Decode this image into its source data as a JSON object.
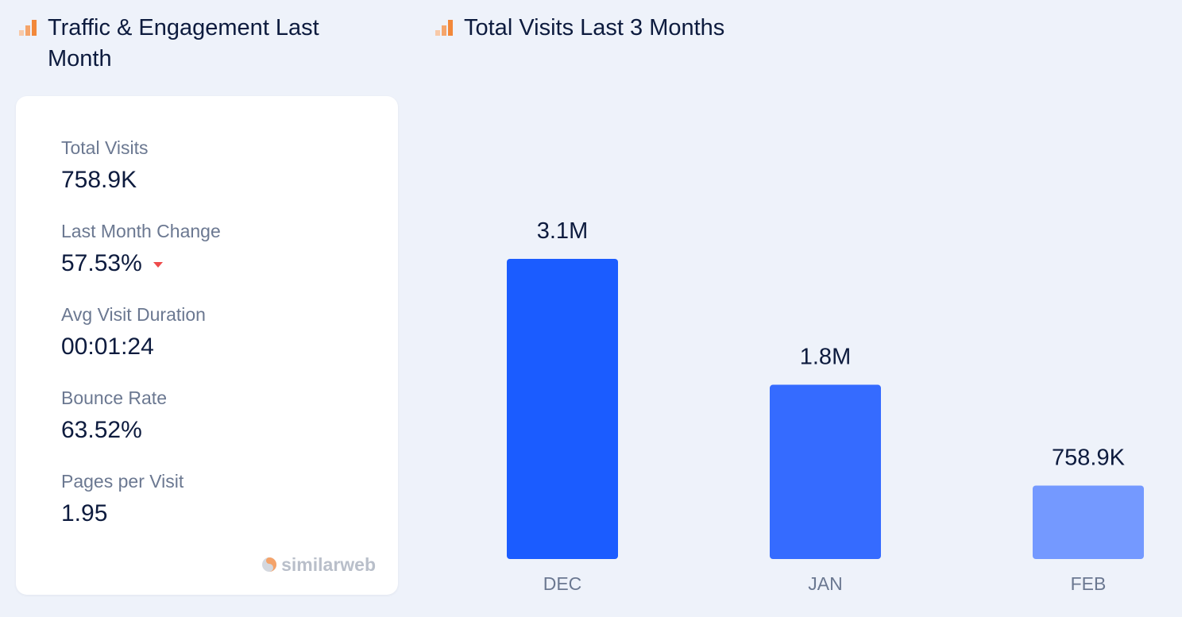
{
  "left_panel": {
    "title": "Traffic & Engagement Last Month",
    "title_icon": "bar-chart-icon",
    "metrics": [
      {
        "label": "Total Visits",
        "value": "758.9K"
      },
      {
        "label": "Last Month Change",
        "value": "57.53%",
        "trend": "down",
        "trend_icon": "caret-down-icon",
        "trend_color": "#ee4a4a"
      },
      {
        "label": "Avg Visit Duration",
        "value": "00:01:24"
      },
      {
        "label": "Bounce Rate",
        "value": "63.52%"
      },
      {
        "label": "Pages per Visit",
        "value": "1.95"
      }
    ],
    "brand": "similarweb",
    "brand_icon": "similarweb-logo-icon"
  },
  "right_panel": {
    "title": "Total Visits Last 3 Months",
    "title_icon": "bar-chart-icon"
  },
  "colors": {
    "background": "#eef2fa",
    "card": "#ffffff",
    "accent_orange": "#f2883a",
    "bar_dec": "#1b5cff",
    "bar_jan": "#356bff",
    "bar_feb": "#7499ff"
  },
  "chart_data": {
    "type": "bar",
    "title": "Total Visits Last 3 Months",
    "categories": [
      "DEC",
      "JAN",
      "FEB"
    ],
    "values": [
      3100000,
      1800000,
      758900
    ],
    "value_labels": [
      "3.1M",
      "1.8M",
      "758.9K"
    ],
    "bar_colors": [
      "#1b5cff",
      "#356bff",
      "#7499ff"
    ],
    "xlabel": "",
    "ylabel": "",
    "ylim": [
      0,
      3100000
    ],
    "grid": false,
    "legend": "none"
  }
}
